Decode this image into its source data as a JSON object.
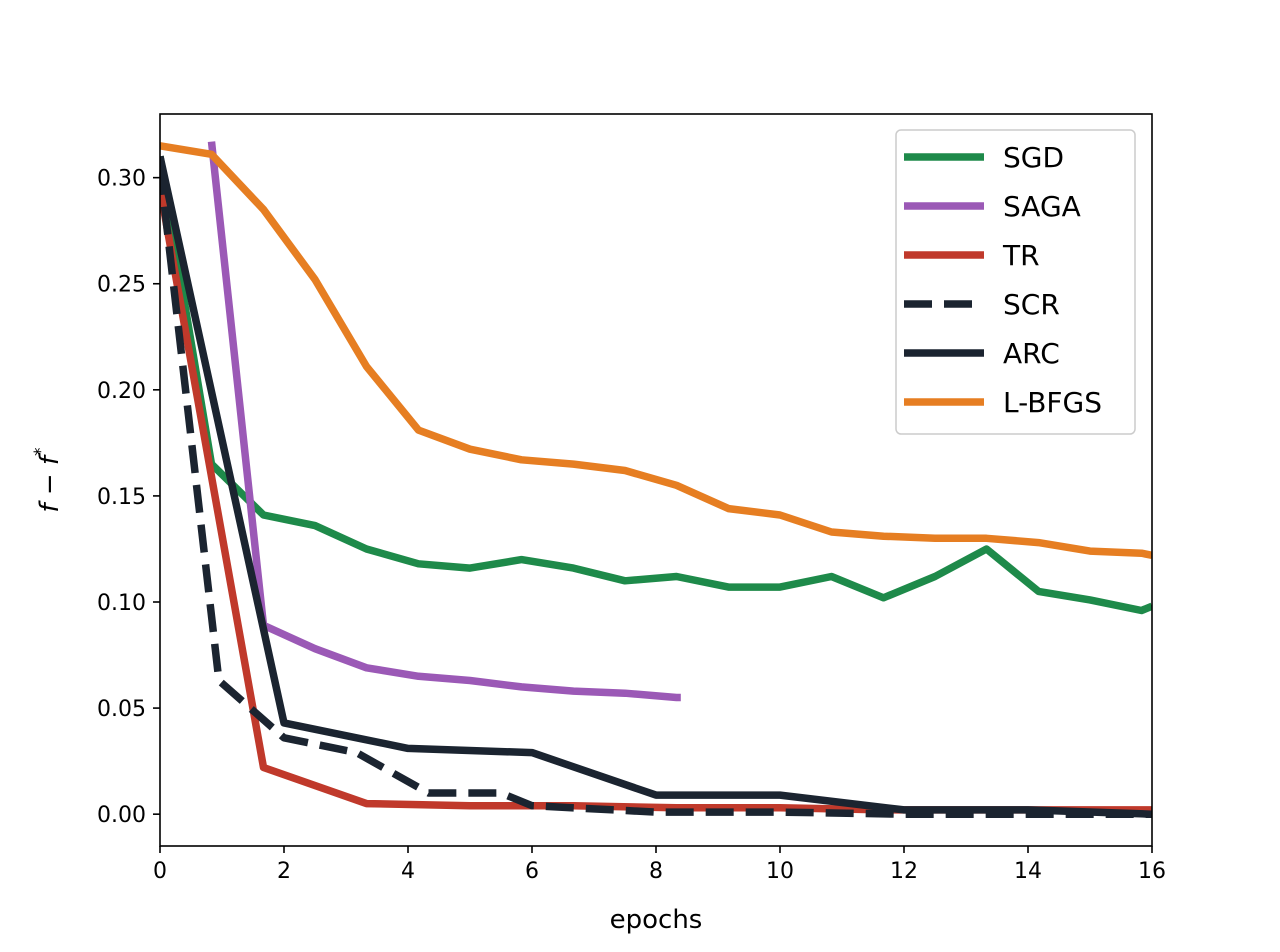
{
  "chart_data": {
    "type": "line",
    "title": "",
    "xlabel": "epochs",
    "ylabel": "f − f*",
    "ylabel_base": "f − f",
    "ylabel_sup": "*",
    "xlim": [
      0,
      16
    ],
    "ylim": [
      -0.015,
      0.33
    ],
    "xticks": [
      0,
      2,
      4,
      6,
      8,
      10,
      12,
      14,
      16
    ],
    "xtick_labels": [
      "0",
      "2",
      "4",
      "6",
      "8",
      "10",
      "12",
      "14",
      "16"
    ],
    "yticks": [
      0.0,
      0.05,
      0.1,
      0.15,
      0.2,
      0.25,
      0.3
    ],
    "ytick_labels": [
      "0.00",
      "0.05",
      "0.10",
      "0.15",
      "0.20",
      "0.25",
      "0.30"
    ],
    "grid": false,
    "legend_position": "top-right",
    "series": [
      {
        "name": "SGD",
        "color": "#1e8a4a",
        "dash": "solid",
        "x": [
          0,
          0.83,
          1.67,
          2.5,
          3.33,
          4.17,
          5,
          5.83,
          6.67,
          7.5,
          8.33,
          9.17,
          10,
          10.83,
          11.67,
          12.5,
          13.33,
          14.17,
          15,
          15.83,
          16
        ],
        "y": [
          0.31,
          0.165,
          0.141,
          0.136,
          0.125,
          0.118,
          0.116,
          0.12,
          0.116,
          0.11,
          0.112,
          0.107,
          0.107,
          0.112,
          0.102,
          0.112,
          0.125,
          0.105,
          0.101,
          0.096,
          0.098
        ]
      },
      {
        "name": "SAGA",
        "color": "#9b59b6",
        "dash": "solid",
        "x": [
          0.83,
          1.67,
          2.5,
          3.33,
          4.17,
          5,
          5.83,
          6.67,
          7.5,
          8.33,
          8.4
        ],
        "y": [
          0.317,
          0.089,
          0.078,
          0.069,
          0.065,
          0.063,
          0.06,
          0.058,
          0.057,
          0.055,
          0.055
        ]
      },
      {
        "name": "TR",
        "color": "#c0392b",
        "dash": "solid",
        "x": [
          0,
          1.67,
          3.33,
          5,
          6.67,
          8.33,
          10,
          11.67,
          13.33,
          15,
          16
        ],
        "y": [
          0.295,
          0.022,
          0.005,
          0.004,
          0.004,
          0.003,
          0.003,
          0.002,
          0.002,
          0.002,
          0.002
        ]
      },
      {
        "name": "SCR",
        "color": "#1b2430",
        "dash": "dashed",
        "x": [
          0,
          0.95,
          2,
          3.17,
          4.33,
          5.5,
          6,
          8,
          10,
          12,
          14,
          16
        ],
        "y": [
          0.305,
          0.063,
          0.036,
          0.029,
          0.01,
          0.01,
          0.004,
          0.001,
          0.001,
          0.0,
          0.0,
          0.0
        ]
      },
      {
        "name": "ARC",
        "color": "#1b2430",
        "dash": "solid",
        "x": [
          0,
          2,
          4,
          6,
          8,
          10,
          12,
          14,
          16
        ],
        "y": [
          0.31,
          0.043,
          0.031,
          0.029,
          0.009,
          0.009,
          0.002,
          0.002,
          0.0
        ]
      },
      {
        "name": "L-BFGS",
        "color": "#e67e22",
        "dash": "solid",
        "x": [
          0,
          0.83,
          1.67,
          2.5,
          3.33,
          4.17,
          5,
          5.83,
          6.67,
          7.5,
          8.33,
          9.17,
          10,
          10.83,
          11.67,
          12.5,
          13.33,
          14.17,
          15,
          15.83,
          16
        ],
        "y": [
          0.315,
          0.311,
          0.285,
          0.252,
          0.211,
          0.181,
          0.172,
          0.167,
          0.165,
          0.162,
          0.155,
          0.144,
          0.141,
          0.133,
          0.131,
          0.13,
          0.13,
          0.128,
          0.124,
          0.123,
          0.122
        ]
      }
    ]
  }
}
